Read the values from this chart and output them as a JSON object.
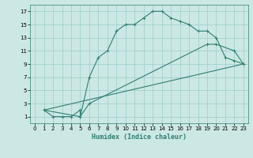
{
  "title": "",
  "xlabel": "Humidex (Indice chaleur)",
  "bg_color": "#cce8e4",
  "grid_color": "#99cccc",
  "line_color": "#2e7f72",
  "xlim": [
    -0.5,
    23.5
  ],
  "ylim": [
    0,
    18
  ],
  "xticks": [
    0,
    1,
    2,
    3,
    4,
    5,
    6,
    7,
    8,
    9,
    10,
    11,
    12,
    13,
    14,
    15,
    16,
    17,
    18,
    19,
    20,
    21,
    22,
    23
  ],
  "yticks": [
    1,
    3,
    5,
    7,
    9,
    11,
    13,
    15,
    17
  ],
  "curve1_x": [
    1,
    2,
    3,
    4,
    5,
    5,
    6,
    7,
    8,
    9,
    10,
    11,
    12,
    13,
    14,
    15,
    16,
    17,
    18,
    19,
    20,
    21,
    22,
    23
  ],
  "curve1_y": [
    2,
    1,
    1,
    1,
    2,
    1,
    7,
    10,
    11,
    14,
    15,
    15,
    16,
    17,
    17,
    16,
    15.5,
    15,
    14,
    14,
    13,
    10,
    9.5,
    9
  ],
  "curve2_x": [
    1,
    5,
    6,
    19,
    20,
    22,
    23
  ],
  "curve2_y": [
    2,
    1,
    3,
    12,
    12,
    11,
    9
  ],
  "curve3_x": [
    1,
    23
  ],
  "curve3_y": [
    2,
    9
  ],
  "tick_fontsize": 5.0,
  "xlabel_fontsize": 6.0
}
